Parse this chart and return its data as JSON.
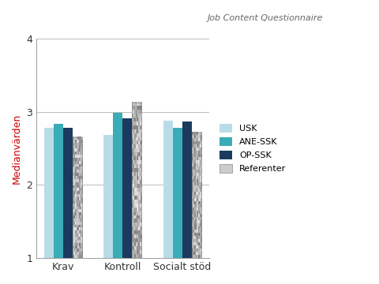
{
  "categories": [
    "Krav",
    "Kontroll",
    "Socialt stöd"
  ],
  "series": {
    "USK": [
      2.78,
      2.68,
      2.88
    ],
    "ANE-SSK": [
      2.83,
      2.99,
      2.78
    ],
    "OP-SSK": [
      2.78,
      2.91,
      2.87
    ],
    "Referenter": [
      2.65,
      3.13,
      2.72
    ]
  },
  "solid_colors": {
    "USK": "#b8dde8",
    "ANE-SSK": "#3aacb8",
    "OP-SSK": "#1c3a5e"
  },
  "ylabel": "Medianvärden",
  "ylim": [
    1,
    4
  ],
  "yticks": [
    1,
    2,
    3,
    4
  ],
  "subtitle": "Job Content Questionnaire",
  "subtitle_color": "#666666",
  "legend_labels": [
    "USK",
    "ANE-SSK",
    "OP-SSK",
    "Referenter"
  ],
  "bar_width": 0.16,
  "background_color": "#ffffff",
  "grid_color": "#bbbbbb",
  "ylabel_color": "#cc0000",
  "tick_label_color": "#333333"
}
